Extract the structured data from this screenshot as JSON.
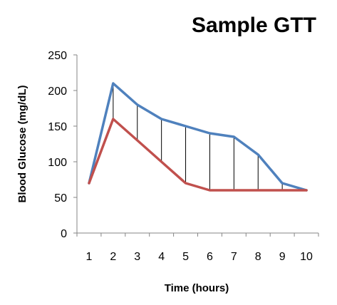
{
  "chart_data": {
    "type": "line",
    "title": "Sample GTT",
    "xlabel": "Time (hours)",
    "ylabel": "Blood Glucose (mg/dL)",
    "x": [
      1,
      2,
      3,
      4,
      5,
      6,
      7,
      8,
      9,
      10
    ],
    "x_tick_labels": [
      "1",
      "2",
      "3",
      "4",
      "5",
      "6",
      "7",
      "8",
      "9",
      "10"
    ],
    "ylim": [
      0,
      250
    ],
    "y_tick_labels": [
      "0",
      "50",
      "100",
      "150",
      "200",
      "250"
    ],
    "series": [
      {
        "values": [
          70,
          210,
          180,
          160,
          150,
          140,
          135,
          110,
          70,
          60
        ],
        "color": "#4F81BD"
      },
      {
        "values": [
          70,
          160,
          130,
          100,
          70,
          60,
          60,
          60,
          60,
          60
        ],
        "color": "#C0504D"
      }
    ],
    "drop_lines": {
      "between": "series",
      "x": [
        2,
        3,
        4,
        5,
        6,
        7,
        8,
        9
      ],
      "color": "#000000"
    },
    "grid": false,
    "legend": "none"
  }
}
